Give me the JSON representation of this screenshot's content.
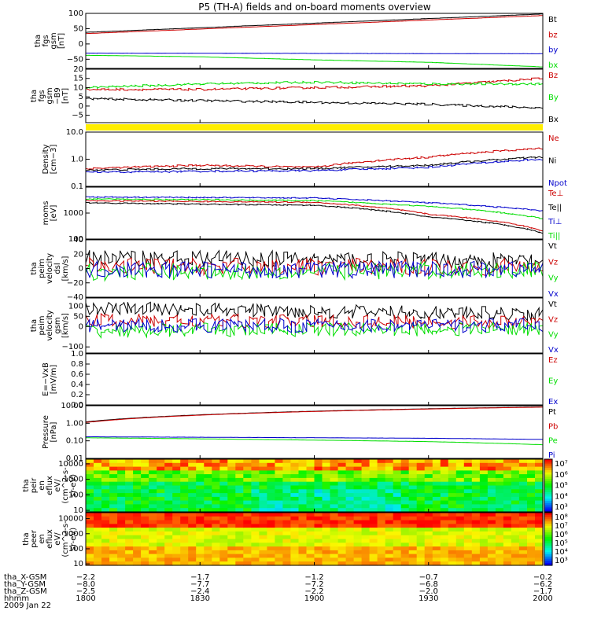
{
  "title": "P5 (TH-A) fields and on-board moments overview",
  "colors": {
    "black": "#000000",
    "red": "#cc0000",
    "green": "#00dd00",
    "blue": "#0000cc",
    "yellow": "#ffee00"
  },
  "chart_data": [
    {
      "type": "line",
      "ylabel_lines": [
        "tha",
        "fgs",
        "gsm",
        "[nT]"
      ],
      "ylim": [
        -80,
        100
      ],
      "yticks": [
        "100",
        "50",
        "0",
        "−50"
      ],
      "ytick_values": [
        100,
        50,
        0,
        -50
      ],
      "series": [
        {
          "name": "Bt",
          "color": "#000000",
          "x": [
            1800,
            2000
          ],
          "values": [
            38,
            98
          ]
        },
        {
          "name": "bz",
          "color": "#cc0000",
          "x": [
            1800,
            2000
          ],
          "values": [
            34,
            93
          ]
        },
        {
          "name": "by",
          "color": "#0000cc",
          "x": [
            1800,
            2000
          ],
          "values": [
            -30,
            -32
          ]
        },
        {
          "name": "bx",
          "color": "#00dd00",
          "x": [
            1800,
            1830,
            1900,
            1930,
            2000
          ],
          "values": [
            -37,
            -42,
            -52,
            -60,
            -75
          ]
        }
      ]
    },
    {
      "type": "line",
      "ylabel_lines": [
        "tha",
        "fgs",
        "gsm",
        "−B9",
        "[nT]"
      ],
      "ylim": [
        -9,
        20
      ],
      "yticks": [
        "20",
        "15",
        "10",
        "5",
        "0",
        "−5"
      ],
      "ytick_values": [
        20,
        15,
        10,
        5,
        0,
        -5
      ],
      "series": [
        {
          "name": "Bz",
          "color": "#cc0000",
          "x": [
            1800,
            1830,
            1900,
            1930,
            2000
          ],
          "values": [
            9,
            9,
            10,
            11,
            15
          ]
        },
        {
          "name": "By",
          "color": "#00dd00",
          "x": [
            1800,
            1830,
            1900,
            1930,
            2000
          ],
          "values": [
            10,
            12,
            13,
            12,
            12
          ]
        },
        {
          "name": "Bx",
          "color": "#000000",
          "x": [
            1800,
            1830,
            1900,
            1930,
            2000
          ],
          "values": [
            4,
            3,
            2,
            1,
            -1
          ]
        }
      ]
    },
    {
      "type": "line",
      "ylabel_lines": [
        "Density",
        "[cm−3]"
      ],
      "ylim": [
        0.1,
        10
      ],
      "log": true,
      "yticks": [
        "10.0",
        "1.0",
        "0.1"
      ],
      "ytick_values": [
        10,
        1,
        0.1
      ],
      "series": [
        {
          "name": "Ne",
          "color": "#cc0000",
          "x": [
            1800,
            1830,
            1900,
            1930,
            2000
          ],
          "values": [
            0.45,
            0.6,
            0.5,
            1.2,
            2.5
          ]
        },
        {
          "name": "Ni",
          "color": "#000000",
          "x": [
            1800,
            1830,
            1900,
            1930,
            2000
          ],
          "values": [
            0.4,
            0.45,
            0.45,
            0.6,
            1.2
          ]
        },
        {
          "name": "Npot",
          "color": "#0000cc",
          "x": [
            1800,
            1830,
            1900,
            1930,
            2000
          ],
          "values": [
            0.33,
            0.36,
            0.38,
            0.5,
            1.0
          ]
        }
      ]
    },
    {
      "type": "line",
      "ylabel_lines": [
        "moms",
        "[eV]"
      ],
      "ylim": [
        100,
        10000
      ],
      "log": true,
      "yticks": [
        "1000",
        "100"
      ],
      "ytick_values": [
        1000,
        100
      ],
      "series": [
        {
          "name": "Te⊥",
          "color": "#cc0000",
          "x": [
            1800,
            1830,
            1900,
            1930,
            2000
          ],
          "values": [
            3000,
            2800,
            2600,
            900,
            200
          ]
        },
        {
          "name": "Te||",
          "color": "#000000",
          "x": [
            1800,
            1830,
            1900,
            1930,
            2000
          ],
          "values": [
            2500,
            2200,
            2000,
            700,
            170
          ]
        },
        {
          "name": "Ti⊥",
          "color": "#0000cc",
          "x": [
            1800,
            1830,
            1900,
            1930,
            2000
          ],
          "values": [
            4200,
            4000,
            3800,
            2500,
            1200
          ]
        },
        {
          "name": "Ti||",
          "color": "#00dd00",
          "x": [
            1800,
            1830,
            1900,
            1930,
            2000
          ],
          "values": [
            3500,
            3300,
            3000,
            1800,
            600
          ]
        }
      ]
    },
    {
      "type": "line",
      "ylabel_lines": [
        "tha",
        "peim",
        "velocity",
        "dsl",
        "[km/s]"
      ],
      "ylim": [
        -40,
        40
      ],
      "yticks": [
        "40",
        "20",
        "0",
        "−20",
        "−40"
      ],
      "ytick_values": [
        40,
        20,
        0,
        -20,
        -40
      ],
      "series": [
        {
          "name": "Vt",
          "color": "#000000",
          "x": [
            1800,
            2000
          ],
          "values": [
            15,
            10
          ]
        },
        {
          "name": "Vz",
          "color": "#cc0000",
          "x": [
            1800,
            2000
          ],
          "values": [
            3,
            2
          ]
        },
        {
          "name": "Vy",
          "color": "#00dd00",
          "x": [
            1800,
            2000
          ],
          "values": [
            -5,
            -2
          ]
        },
        {
          "name": "Vx",
          "color": "#0000cc",
          "x": [
            1800,
            2000
          ],
          "values": [
            -2,
            -1
          ]
        }
      ]
    },
    {
      "type": "line",
      "ylabel_lines": [
        "tha",
        "peim",
        "velocity",
        "gsm",
        "[km/s]"
      ],
      "ylim": [
        -130,
        140
      ],
      "yticks": [
        "100",
        "50",
        "0",
        "−100"
      ],
      "ytick_values": [
        100,
        50,
        0,
        -100
      ],
      "series": [
        {
          "name": "Vt",
          "color": "#000000",
          "x": [
            1800,
            2000
          ],
          "values": [
            90,
            60
          ]
        },
        {
          "name": "Vz",
          "color": "#cc0000",
          "x": [
            1800,
            2000
          ],
          "values": [
            30,
            20
          ]
        },
        {
          "name": "Vy",
          "color": "#00dd00",
          "x": [
            1800,
            2000
          ],
          "values": [
            -20,
            -10
          ]
        },
        {
          "name": "Vx",
          "color": "#0000cc",
          "x": [
            1800,
            2000
          ],
          "values": [
            5,
            5
          ]
        }
      ]
    },
    {
      "type": "line",
      "ylabel_lines": [
        "E=−VxB",
        "[mV/m]"
      ],
      "ylim": [
        0,
        1
      ],
      "yticks": [
        "1.0",
        "0.8",
        "0.6",
        "0.4",
        "0.2",
        "0.0"
      ],
      "ytick_values": [
        1,
        0.8,
        0.6,
        0.4,
        0.2,
        0
      ],
      "series": [
        {
          "name": "Ez",
          "color": "#cc0000",
          "x": [],
          "values": []
        },
        {
          "name": "Ey",
          "color": "#00dd00",
          "x": [],
          "values": []
        },
        {
          "name": "Ex",
          "color": "#0000cc",
          "x": [],
          "values": []
        }
      ]
    },
    {
      "type": "line",
      "ylabel_lines": [
        "Pressure",
        "[nPa]"
      ],
      "ylim": [
        0.01,
        10
      ],
      "log": true,
      "yticks": [
        "10.00",
        "1.00",
        "0.10",
        "0.01"
      ],
      "ytick_values": [
        10,
        1,
        0.1,
        0.01
      ],
      "series": [
        {
          "name": "Pt",
          "color": "#000000",
          "x": [
            1800,
            2000
          ],
          "values": [
            1.2,
            8.5
          ]
        },
        {
          "name": "Pb",
          "color": "#cc0000",
          "x": [
            1800,
            2000
          ],
          "values": [
            1.1,
            8.3
          ]
        },
        {
          "name": "Pe",
          "color": "#00dd00",
          "x": [
            1800,
            1830,
            1900,
            1930,
            2000
          ],
          "values": [
            0.15,
            0.13,
            0.11,
            0.09,
            0.06
          ]
        },
        {
          "name": "Pi",
          "color": "#0000cc",
          "x": [
            1800,
            1830,
            1900,
            1930,
            2000
          ],
          "values": [
            0.17,
            0.16,
            0.15,
            0.14,
            0.12
          ]
        }
      ]
    },
    {
      "type": "heatmap",
      "ylabel_lines": [
        "tha",
        "peir",
        "en",
        "eflux",
        "eV/",
        "(cm^2-s-",
        "sr-eV)"
      ],
      "ylim": [
        8,
        20000
      ],
      "log": true,
      "yticks": [
        "10000",
        "1000",
        "100",
        "10"
      ],
      "ytick_values": [
        10000,
        1000,
        100,
        10
      ],
      "colorbar_ticks": [
        "10⁷",
        "10⁶",
        "10⁵",
        "10⁴",
        "10³"
      ]
    },
    {
      "type": "heatmap",
      "ylabel_lines": [
        "tha",
        "peer",
        "en",
        "eflux",
        "eV/",
        "(cm^2-s-",
        "sr-eV)"
      ],
      "ylim": [
        8,
        25000
      ],
      "log": true,
      "yticks": [
        "10000",
        "1000",
        "100",
        "10"
      ],
      "ytick_values": [
        10000,
        1000,
        100,
        10
      ],
      "colorbar_ticks": [
        "10⁸",
        "10⁷",
        "10⁶",
        "10⁵",
        "10⁴",
        "10³"
      ]
    }
  ],
  "xaxis": {
    "range": [
      1800,
      2000
    ],
    "tick_values": [
      1800,
      1830,
      1900,
      1930,
      2000
    ],
    "rows": [
      {
        "label": "tha_X-GSM",
        "values": [
          "−2.2",
          "−1.7",
          "−1.2",
          "−0.7",
          "−0.2"
        ]
      },
      {
        "label": "tha_Y-GSM",
        "values": [
          "−8.0",
          "−7.7",
          "−7.2",
          "−6.8",
          "−6.2"
        ]
      },
      {
        "label": "tha_Z-GSM",
        "values": [
          "−2.5",
          "−2.4",
          "−2.2",
          "−2.0",
          "−1.7"
        ]
      },
      {
        "label": "hhmm",
        "values": [
          "1800",
          "1830",
          "1900",
          "1930",
          "2000"
        ]
      }
    ],
    "date": "2009 Jan 22"
  }
}
